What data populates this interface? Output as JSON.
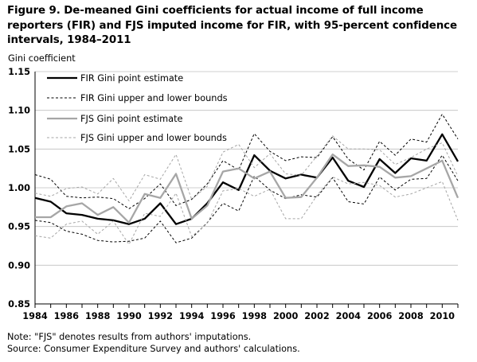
{
  "title": "Figure 9. De-meaned Gini coefficients for actual income of full income reporters (FIR) and FJS imputed income for FIR, with 95-percent confidence intervals, 1984–2011",
  "notes": [
    "Note: \"FJS\" denotes results from authors' imputations.",
    "Source: Consumer Expenditure Survey and authors' calculations."
  ],
  "chart_data": {
    "type": "line",
    "ylabel": "Gini coefficient",
    "xlabel": "",
    "ylim": [
      0.85,
      1.15
    ],
    "yticks": [
      "1.15",
      "1.10",
      "1.05",
      "1.00",
      "0.95",
      "0.90",
      "0.85"
    ],
    "xticks": [
      "1984",
      "1986",
      "1988",
      "1990",
      "1992",
      "1994",
      "1996",
      "1998",
      "2000",
      "2002",
      "2004",
      "2006",
      "2008",
      "2010"
    ],
    "x": [
      1984,
      1985,
      1986,
      1987,
      1988,
      1989,
      1990,
      1991,
      1992,
      1993,
      1994,
      1995,
      1996,
      1997,
      1998,
      1999,
      2000,
      2001,
      2002,
      2003,
      2004,
      2005,
      2006,
      2007,
      2008,
      2009,
      2010,
      2011
    ],
    "grid": "horizontal",
    "legend_position": "top-left",
    "colors": {
      "fir": "#000000",
      "fjs": "#a6a6a6"
    },
    "series": [
      {
        "name": "FIR Gini point estimate",
        "style": "solid-thick",
        "color": "#000000",
        "values": [
          0.987,
          0.982,
          0.967,
          0.965,
          0.96,
          0.958,
          0.953,
          0.96,
          0.98,
          0.953,
          0.96,
          0.98,
          1.007,
          0.997,
          1.042,
          1.022,
          1.012,
          1.017,
          1.013,
          1.039,
          1.009,
          1.001,
          1.037,
          1.019,
          1.038,
          1.035,
          1.069,
          1.034
        ]
      },
      {
        "name": "FIR Gini upper and lower bounds",
        "style": "dashed",
        "color": "#000000",
        "values": [
          1.017,
          1.011,
          0.989,
          0.987,
          0.988,
          0.986,
          0.973,
          0.986,
          1.005,
          0.977,
          0.985,
          1.005,
          1.035,
          1.023,
          1.07,
          1.047,
          1.035,
          1.04,
          1.039,
          1.066,
          1.037,
          1.023,
          1.06,
          1.042,
          1.063,
          1.059,
          1.095,
          1.063
        ]
      },
      {
        "name": "",
        "style": "dashed",
        "color": "#000000",
        "values": [
          0.958,
          0.955,
          0.944,
          0.94,
          0.932,
          0.93,
          0.931,
          0.935,
          0.957,
          0.929,
          0.935,
          0.955,
          0.98,
          0.97,
          1.015,
          0.997,
          0.986,
          0.991,
          0.988,
          1.013,
          0.982,
          0.979,
          1.014,
          0.997,
          1.011,
          1.012,
          1.042,
          1.009
        ]
      },
      {
        "name": "FJS Gini point estimate",
        "style": "solid-thick",
        "color": "#a6a6a6",
        "values": [
          0.962,
          0.962,
          0.976,
          0.98,
          0.965,
          0.975,
          0.955,
          0.992,
          0.987,
          1.018,
          0.96,
          0.977,
          1.021,
          1.025,
          1.012,
          1.021,
          0.987,
          0.988,
          1.013,
          1.043,
          1.028,
          1.029,
          1.027,
          1.013,
          1.015,
          1.025,
          1.035,
          0.987
        ]
      },
      {
        "name": "FJS Gini upper and lower bounds",
        "style": "dashed",
        "color": "#a6a6a6",
        "values": [
          0.993,
          0.989,
          0.999,
          1.001,
          0.992,
          1.012,
          0.983,
          1.017,
          1.011,
          1.043,
          0.985,
          1.002,
          1.046,
          1.056,
          1.026,
          1.044,
          1.018,
          1.016,
          1.041,
          1.067,
          1.05,
          1.05,
          1.049,
          1.03,
          1.039,
          1.05,
          1.058,
          1.015
        ]
      },
      {
        "name": "",
        "style": "dashed",
        "color": "#a6a6a6",
        "values": [
          0.938,
          0.935,
          0.953,
          0.957,
          0.94,
          0.957,
          0.927,
          0.967,
          0.963,
          0.993,
          0.937,
          0.954,
          0.996,
          0.999,
          0.989,
          0.998,
          0.96,
          0.96,
          0.99,
          1.014,
          1.005,
          1.007,
          1.003,
          0.988,
          0.992,
          1.0,
          1.008,
          0.958
        ]
      }
    ]
  }
}
